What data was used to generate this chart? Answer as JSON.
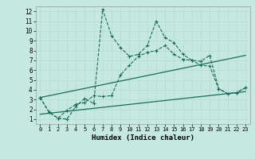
{
  "xlabel": "Humidex (Indice chaleur)",
  "ylabel": "",
  "bg_color": "#c5e8e0",
  "line_color": "#1a6b5a",
  "grid_color": "#b8ddd4",
  "xlim": [
    -0.5,
    23.5
  ],
  "ylim": [
    0.5,
    12.5
  ],
  "xticks": [
    0,
    1,
    2,
    3,
    4,
    5,
    6,
    7,
    8,
    9,
    10,
    11,
    12,
    13,
    14,
    15,
    16,
    17,
    18,
    19,
    20,
    21,
    22,
    23
  ],
  "yticks": [
    1,
    2,
    3,
    4,
    5,
    6,
    7,
    8,
    9,
    10,
    11,
    12
  ],
  "line1_x": [
    0,
    1,
    2,
    3,
    4,
    5,
    6,
    7,
    8,
    9,
    10,
    11,
    12,
    13,
    14,
    15,
    16,
    17,
    18,
    19,
    20,
    21,
    22,
    23
  ],
  "line1_y": [
    3.2,
    1.7,
    1.1,
    1.0,
    2.3,
    3.1,
    2.6,
    12.2,
    9.5,
    8.3,
    7.4,
    7.6,
    8.5,
    11.0,
    9.3,
    8.8,
    7.6,
    7.0,
    6.9,
    7.5,
    4.1,
    3.6,
    3.7,
    4.2
  ],
  "line2_x": [
    0,
    1,
    2,
    3,
    4,
    5,
    6,
    7,
    8,
    9,
    10,
    11,
    12,
    13,
    14,
    15,
    16,
    17,
    18,
    19,
    20,
    21,
    22,
    23
  ],
  "line2_y": [
    3.2,
    1.7,
    1.1,
    1.9,
    2.5,
    2.7,
    3.4,
    3.3,
    3.4,
    5.5,
    6.5,
    7.4,
    7.8,
    8.0,
    8.5,
    7.6,
    7.1,
    7.0,
    6.5,
    6.4,
    4.1,
    3.6,
    3.7,
    4.2
  ],
  "line3_x": [
    0,
    23
  ],
  "line3_y": [
    3.2,
    7.5
  ],
  "line4_x": [
    0,
    23
  ],
  "line4_y": [
    1.5,
    3.8
  ],
  "figsize": [
    3.2,
    2.0
  ],
  "dpi": 100
}
